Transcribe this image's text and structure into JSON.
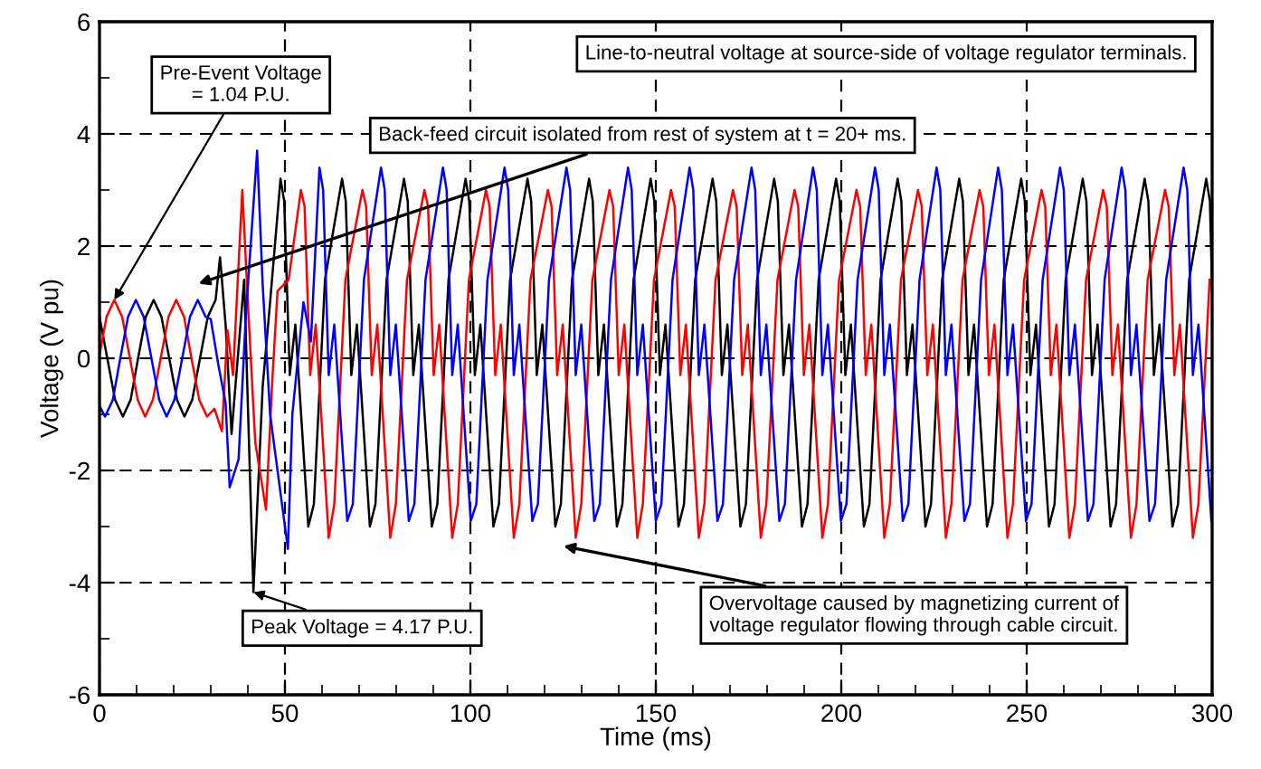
{
  "chart_data": {
    "type": "line",
    "xlabel": "Time (ms)",
    "ylabel": "Voltage (V pu)",
    "xlim": [
      0,
      300
    ],
    "ylim": [
      -6,
      6
    ],
    "xticks": [
      0,
      50,
      100,
      150,
      200,
      250,
      300
    ],
    "yticks": [
      -6,
      -4,
      -2,
      0,
      2,
      4,
      6
    ],
    "grid": true,
    "legend": false,
    "line_style": "solid",
    "marker": "none",
    "annotations": [
      {
        "text": "Pre-Event Voltage\n= 1.04 P.U.",
        "x": 4,
        "y": 1.04
      },
      "Back-feed circuit isolated from rest of system at t = 20+ ms.",
      "Line-to-neutral voltage at source-side of voltage regulator terminals.",
      {
        "text": "Peak Voltage = 4.17 P.U.",
        "x": 41.5,
        "y": -4.17
      },
      "Overvoltage caused by magnetizing current of\nvoltage regulator flowing through cable circuit."
    ],
    "series": [
      {
        "color": "#000000",
        "x": [
          0,
          2.1,
          4.2,
          6.3,
          8.4,
          10.4,
          12.5,
          14.6,
          16.7,
          18.8,
          20.9,
          22.9,
          25.0,
          27.1,
          29.2,
          31.3,
          32.5,
          34,
          35.6,
          39,
          41.5,
          44,
          46,
          48.8,
          49.8,
          51.3,
          52.8,
          56.3,
          57.8,
          60.8,
          65.4,
          66.4,
          67.9,
          69.4,
          72.9,
          74.4,
          77.4,
          82.1,
          83.1,
          84.6,
          86.1,
          89.6,
          91.1,
          94.1,
          98.7,
          99.7,
          101.2,
          102.7,
          106.2,
          107.7,
          110.7,
          115.4,
          116.4,
          117.9,
          119.4,
          122.9,
          124.4,
          127.4,
          132.0,
          133.0,
          134.5,
          136.0,
          139.5,
          141.0,
          144.0,
          148.6,
          149.6,
          151.1,
          152.6,
          156.1,
          157.6,
          160.6,
          165.3,
          166.3,
          167.8,
          169.3,
          172.8,
          174.3,
          177.3,
          181.9,
          182.9,
          184.4,
          185.9,
          189.4,
          190.9,
          193.9,
          198.6,
          199.6,
          201.1,
          202.6,
          206.1,
          207.6,
          210.6,
          215.2,
          216.2,
          217.7,
          219.2,
          222.7,
          224.2,
          227.2,
          231.8,
          232.8,
          234.3,
          235.8,
          239.3,
          240.8,
          243.8,
          248.5,
          249.5,
          251.0,
          252.5,
          256.0,
          257.5,
          260.5,
          265.1,
          266.1,
          267.6,
          269.1,
          272.6,
          274.1,
          277.1,
          281.8,
          282.8,
          284.3,
          285.8,
          289.3,
          290.8,
          293.8,
          298.4,
          299.4,
          300
        ],
        "values": [
          0.74,
          0,
          -0.74,
          -1.04,
          -0.74,
          0,
          0.74,
          1.04,
          0.74,
          0,
          -0.74,
          -1.04,
          -0.74,
          0,
          0.74,
          1.04,
          1.8,
          0.6,
          -1.35,
          1.4,
          -4.17,
          -0.5,
          1.0,
          3.2,
          2.8,
          -0.3,
          0.6,
          -3.0,
          -2.6,
          1.4,
          3.2,
          2.8,
          -0.3,
          0.6,
          -3.0,
          -2.6,
          1.4,
          3.2,
          2.8,
          -0.3,
          0.6,
          -3.0,
          -2.6,
          1.4,
          3.2,
          2.8,
          -0.3,
          0.6,
          -3.0,
          -2.6,
          1.4,
          3.2,
          2.8,
          -0.3,
          0.6,
          -3.0,
          -2.6,
          1.4,
          3.2,
          2.8,
          -0.3,
          0.6,
          -3.0,
          -2.6,
          1.4,
          3.2,
          2.8,
          -0.3,
          0.6,
          -3.0,
          -2.6,
          1.4,
          3.2,
          2.8,
          -0.3,
          0.6,
          -3.0,
          -2.6,
          1.4,
          3.2,
          2.8,
          -0.3,
          0.6,
          -3.0,
          -2.6,
          1.4,
          3.2,
          2.8,
          -0.3,
          0.6,
          -3.0,
          -2.6,
          1.4,
          3.2,
          2.8,
          -0.3,
          0.6,
          -3.0,
          -2.6,
          1.4,
          3.2,
          2.8,
          -0.3,
          0.6,
          -3.0,
          -2.6,
          1.4,
          3.2,
          2.8,
          -0.3,
          0.6,
          -3.0,
          -2.6,
          1.4,
          3.2,
          2.8,
          -0.3,
          0.6,
          -3.0,
          -2.6,
          1.4,
          3.2,
          2.8,
          -0.3,
          0.6,
          -3.0,
          -2.6,
          1.4,
          3.2,
          2.8,
          1.2
        ]
      },
      {
        "color": "#ff0000",
        "x": [
          0,
          1.9,
          4.0,
          6.1,
          8.2,
          10.3,
          12.3,
          14.4,
          16.5,
          18.6,
          20.7,
          22.8,
          24.8,
          26.9,
          29.0,
          31,
          33,
          34.5,
          36,
          38.5,
          40,
          42,
          44.9,
          46.5,
          48,
          51,
          54.3,
          55.3,
          56.8,
          58.3,
          61.8,
          63.3,
          66.3,
          70.9,
          71.9,
          73.4,
          74.9,
          78.4,
          79.9,
          82.9,
          87.6,
          88.6,
          90.1,
          91.6,
          95.1,
          96.6,
          99.6,
          104.2,
          105.2,
          106.7,
          108.2,
          111.7,
          113.2,
          116.2,
          120.9,
          121.9,
          123.4,
          124.9,
          128.4,
          129.9,
          132.9,
          137.5,
          138.5,
          140.0,
          141.5,
          145.0,
          146.5,
          149.5,
          154.1,
          155.1,
          156.6,
          158.1,
          161.6,
          163.1,
          166.1,
          170.8,
          171.8,
          173.3,
          174.8,
          178.3,
          179.8,
          182.8,
          187.4,
          188.4,
          189.9,
          191.4,
          194.9,
          196.4,
          199.4,
          204.1,
          205.1,
          206.6,
          208.1,
          211.6,
          213.1,
          216.1,
          220.7,
          221.7,
          223.2,
          224.7,
          228.2,
          229.7,
          232.7,
          237.3,
          238.3,
          239.8,
          241.3,
          244.8,
          246.3,
          249.3,
          254.0,
          255.0,
          256.5,
          258.0,
          261.5,
          263.0,
          266.0,
          270.6,
          271.6,
          273.1,
          274.6,
          278.1,
          279.6,
          282.6,
          287.3,
          288.3,
          289.8,
          291.3,
          294.8,
          296.3,
          299.3
        ],
        "values": [
          0.06,
          0.74,
          1.04,
          0.74,
          0,
          -0.74,
          -1.04,
          -0.74,
          0,
          0.74,
          1.04,
          0.74,
          0,
          -0.74,
          -1.04,
          -0.9,
          -1.3,
          0.5,
          -0.3,
          3.0,
          1.0,
          -1.5,
          -2.7,
          -0.5,
          1.2,
          1.4,
          3.0,
          2.7,
          -0.3,
          0.6,
          -3.2,
          -2.6,
          1.4,
          3.0,
          2.7,
          -0.3,
          0.6,
          -3.2,
          -2.6,
          1.4,
          3.0,
          2.7,
          -0.3,
          0.6,
          -3.2,
          -2.6,
          1.4,
          3.0,
          2.7,
          -0.3,
          0.6,
          -3.2,
          -2.6,
          1.4,
          3.0,
          2.7,
          -0.3,
          0.6,
          -3.2,
          -2.6,
          1.4,
          3.0,
          2.7,
          -0.3,
          0.6,
          -3.2,
          -2.6,
          1.4,
          3.0,
          2.7,
          -0.3,
          0.6,
          -3.2,
          -2.6,
          1.4,
          3.0,
          2.7,
          -0.3,
          0.6,
          -3.2,
          -2.6,
          1.4,
          3.0,
          2.7,
          -0.3,
          0.6,
          -3.2,
          -2.6,
          1.4,
          3.0,
          2.7,
          -0.3,
          0.6,
          -3.2,
          -2.6,
          1.4,
          3.0,
          2.7,
          -0.3,
          0.6,
          -3.2,
          -2.6,
          1.4,
          3.0,
          2.7,
          -0.3,
          0.6,
          -3.2,
          -2.6,
          1.4,
          3.0,
          2.7,
          -0.3,
          0.6,
          -3.2,
          -2.6,
          1.4,
          3.0,
          2.7,
          -0.3,
          0.6,
          -3.2,
          -2.6,
          1.4,
          3.0,
          2.7,
          -0.3,
          0.6,
          -3.2,
          -2.6,
          1.4
        ]
      },
      {
        "color": "#0000ff",
        "x": [
          0,
          1.5,
          3.6,
          5.6,
          7.7,
          9.8,
          11.9,
          14.0,
          16.1,
          18.1,
          20.2,
          22.3,
          24.4,
          26.5,
          28.6,
          30,
          32,
          34,
          35.1,
          37.5,
          39.5,
          42.5,
          44,
          46,
          50.8,
          52,
          55,
          57,
          59.3,
          60.3,
          61.8,
          63.3,
          66.8,
          68.3,
          71.3,
          75.9,
          76.9,
          78.4,
          79.9,
          83.4,
          84.9,
          87.9,
          92.6,
          93.6,
          95.1,
          96.6,
          100.1,
          101.6,
          104.6,
          109.2,
          110.2,
          111.7,
          113.2,
          116.7,
          118.2,
          121.2,
          125.9,
          126.9,
          128.4,
          129.9,
          133.4,
          134.9,
          137.9,
          142.5,
          143.5,
          145.0,
          146.5,
          150.0,
          151.5,
          154.5,
          159.1,
          160.1,
          161.6,
          163.1,
          166.6,
          168.1,
          171.1,
          175.8,
          176.8,
          178.3,
          179.8,
          183.3,
          184.8,
          187.8,
          192.4,
          193.4,
          194.9,
          196.4,
          199.9,
          201.4,
          204.4,
          209.1,
          210.1,
          211.6,
          213.1,
          216.6,
          218.1,
          221.1,
          225.7,
          226.7,
          228.2,
          229.7,
          233.2,
          234.7,
          237.7,
          242.3,
          243.3,
          244.8,
          246.3,
          249.8,
          251.3,
          254.3,
          259.0,
          260.0,
          261.5,
          263.0,
          266.5,
          268.0,
          271.0,
          275.6,
          276.6,
          278.1,
          279.6,
          283.1,
          284.6,
          287.6,
          292.3,
          293.3,
          294.8,
          296.3,
          299.8
        ],
        "values": [
          -0.85,
          -1.04,
          -0.74,
          0,
          0.74,
          1.04,
          0.74,
          0,
          -0.74,
          -1.04,
          -0.74,
          0,
          0.74,
          1.04,
          0.74,
          0.7,
          -0.1,
          -0.8,
          -2.3,
          -1.8,
          0.8,
          3.7,
          1.3,
          -1.0,
          -3.4,
          -1.0,
          1.0,
          0.3,
          3.4,
          3.0,
          -0.3,
          0.6,
          -2.9,
          -2.6,
          1.4,
          3.4,
          3.0,
          -0.3,
          0.6,
          -2.9,
          -2.6,
          1.4,
          3.4,
          3.0,
          -0.3,
          0.6,
          -2.9,
          -2.6,
          1.4,
          3.4,
          3.0,
          -0.3,
          0.6,
          -2.9,
          -2.6,
          1.4,
          3.4,
          3.0,
          -0.3,
          0.6,
          -2.9,
          -2.6,
          1.4,
          3.4,
          3.0,
          -0.3,
          0.6,
          -2.9,
          -2.6,
          1.4,
          3.4,
          3.0,
          -0.3,
          0.6,
          -2.9,
          -2.6,
          1.4,
          3.4,
          3.0,
          -0.3,
          0.6,
          -2.9,
          -2.6,
          1.4,
          3.4,
          3.0,
          -0.3,
          0.6,
          -2.9,
          -2.6,
          1.4,
          3.4,
          3.0,
          -0.3,
          0.6,
          -2.9,
          -2.6,
          1.4,
          3.4,
          3.0,
          -0.3,
          0.6,
          -2.9,
          -2.6,
          1.4,
          3.4,
          3.0,
          -0.3,
          0.6,
          -2.9,
          -2.6,
          1.4,
          3.4,
          3.0,
          -0.3,
          0.6,
          -2.9,
          -2.6,
          1.4,
          3.4,
          3.0,
          -0.3,
          0.6,
          -2.9,
          -2.6,
          1.4,
          3.4,
          3.0,
          -0.3,
          0.6,
          -2.9
        ]
      }
    ]
  }
}
